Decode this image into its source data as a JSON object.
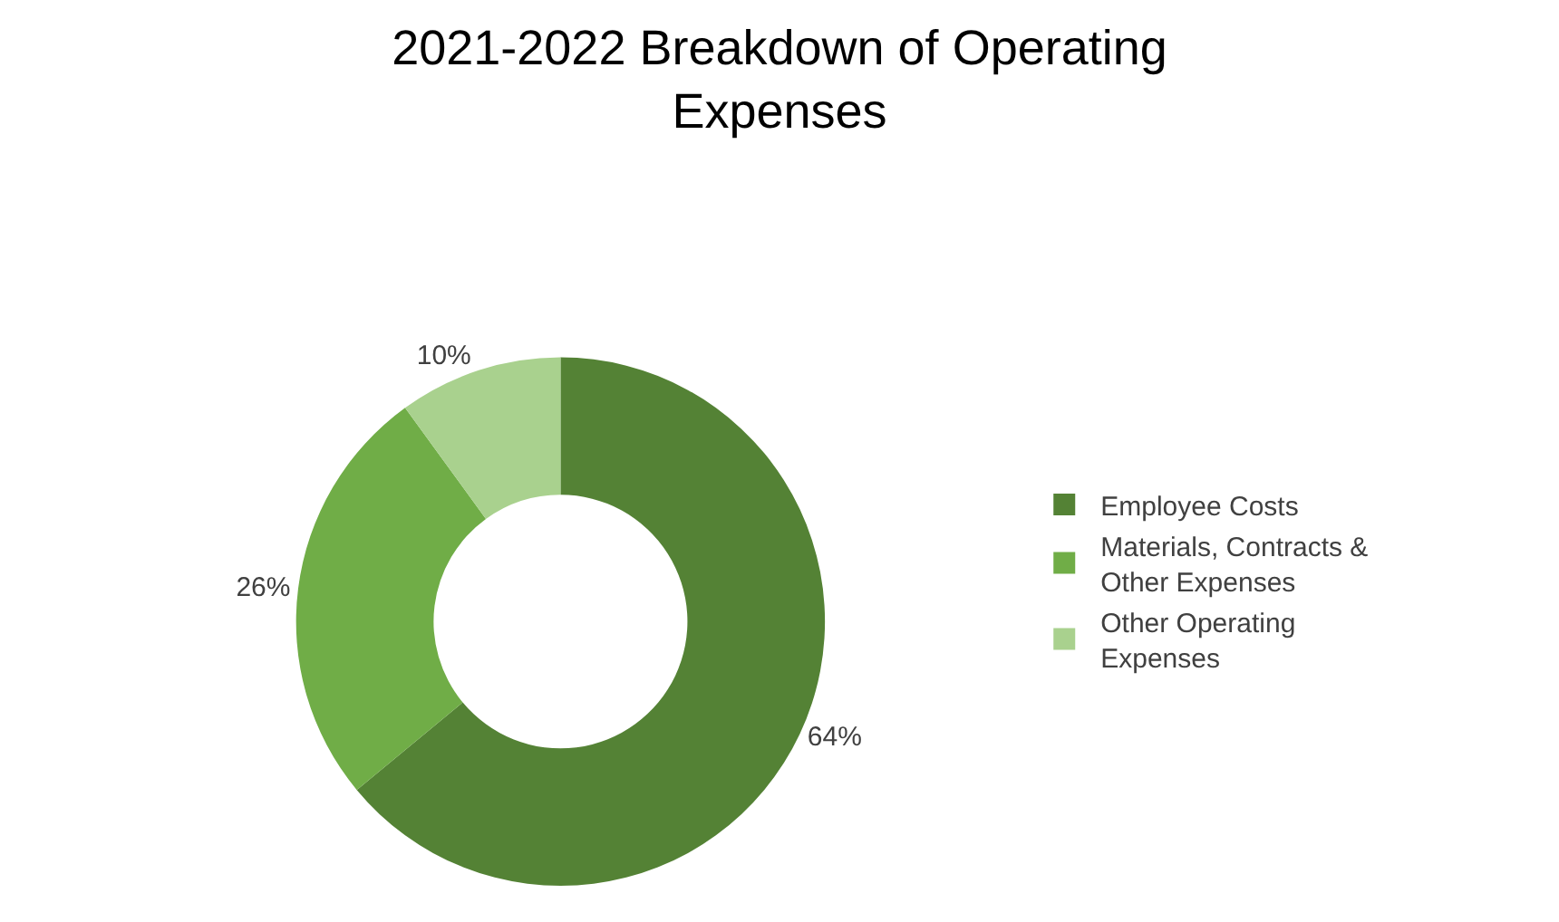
{
  "chart_data": {
    "type": "donut",
    "title": "2021-2022 Breakdown of Operating Expenses",
    "categories": [
      "Employee Costs",
      "Materials, Contracts & Other Expenses",
      "Other Operating Expenses"
    ],
    "values": [
      64,
      26,
      10
    ],
    "colors": [
      "#548235",
      "#70ad47",
      "#a9d18e"
    ],
    "value_labels": [
      "64%",
      "26%",
      "10%"
    ],
    "legend": "right"
  }
}
